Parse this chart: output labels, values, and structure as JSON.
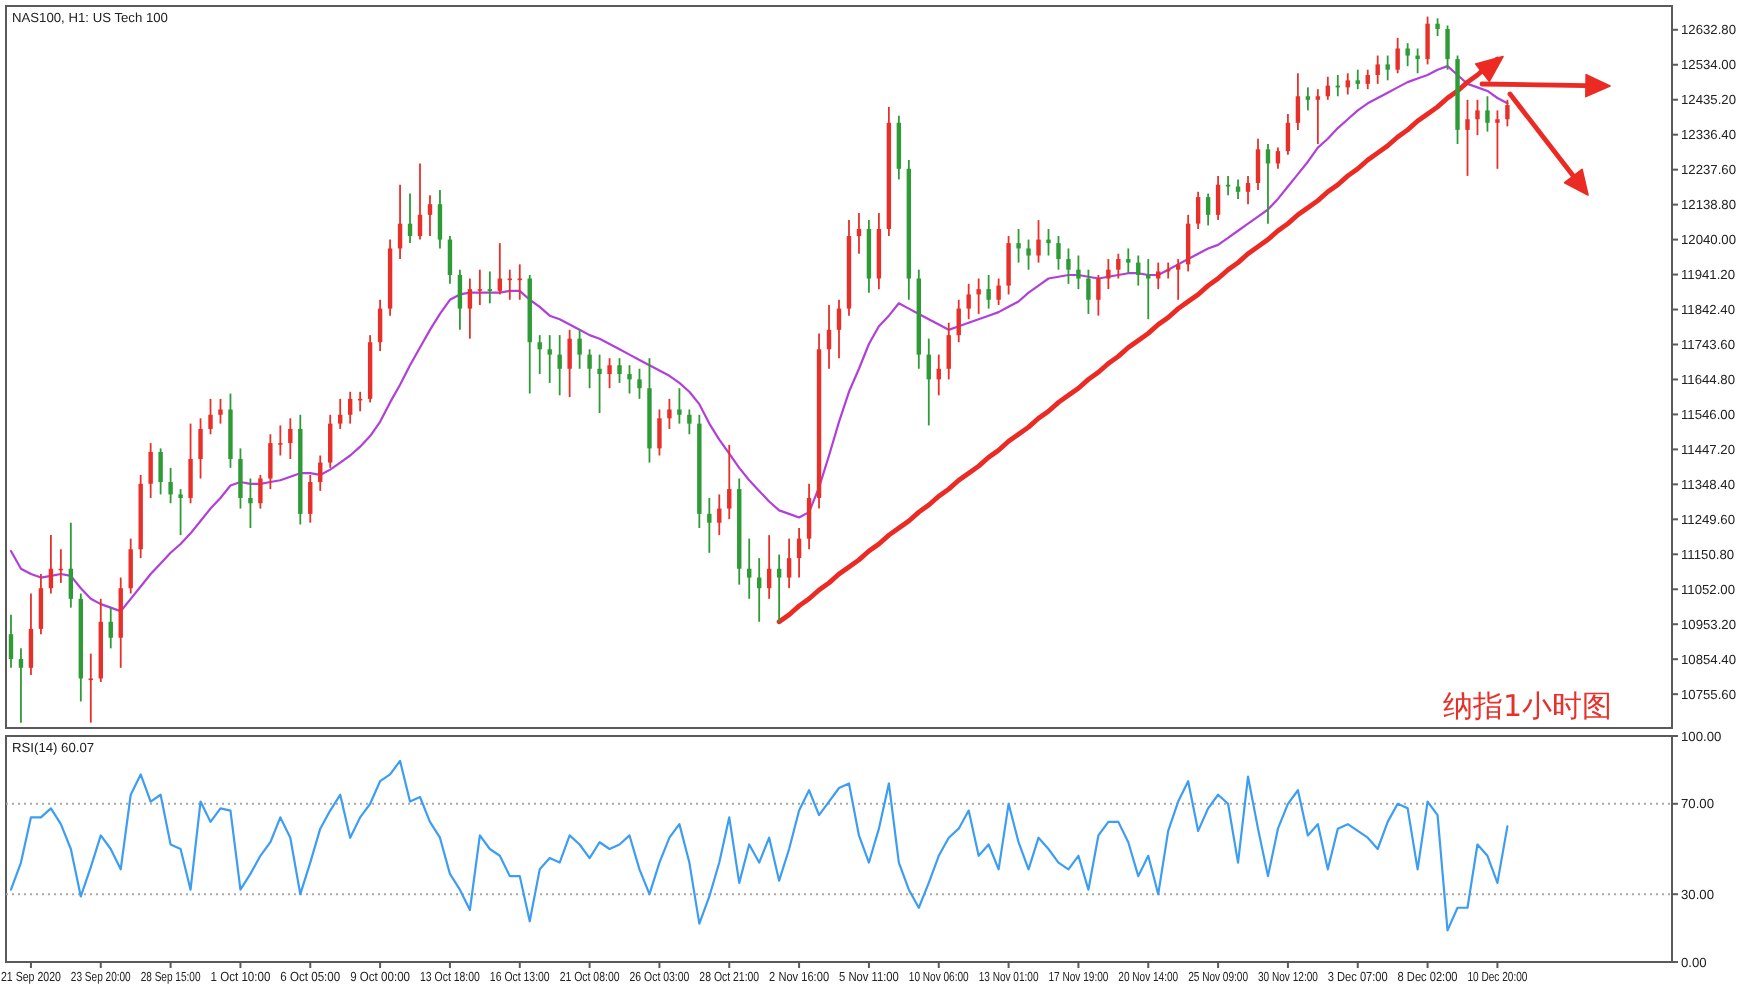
{
  "chart_data": [
    {
      "type": "candlestick",
      "title": "NAS100, H1: US Tech 100",
      "categories": [
        null,
        null,
        null,
        null,
        null,
        null,
        null,
        null,
        null,
        null,
        null,
        null,
        null,
        null,
        null,
        null,
        null,
        null,
        null,
        null,
        null,
        null,
        null,
        null,
        null,
        null,
        null,
        null,
        null,
        null,
        null,
        null,
        null,
        null,
        null,
        null,
        null,
        null,
        null,
        null,
        null,
        null,
        null,
        null,
        null,
        null,
        null,
        null,
        null,
        null,
        null,
        null,
        null,
        null,
        null,
        null,
        null,
        null,
        null,
        null,
        null,
        null,
        null,
        null,
        null,
        null,
        null,
        null,
        null,
        null,
        null,
        null,
        null,
        null,
        null,
        null,
        null,
        null,
        null,
        null,
        null,
        null,
        null,
        null,
        null,
        null,
        null,
        null,
        null,
        null,
        null,
        null,
        null,
        null,
        null,
        null,
        null,
        null,
        null,
        null,
        null,
        null,
        null,
        null,
        null,
        null,
        null,
        null,
        null,
        null,
        null,
        null,
        null,
        null,
        null,
        null,
        null,
        null,
        null,
        null,
        null,
        null,
        null,
        null,
        null,
        null,
        null,
        null,
        null,
        null,
        null,
        null,
        null,
        null,
        null,
        null,
        null,
        null,
        null,
        null,
        null,
        null,
        null,
        null,
        null,
        null,
        null,
        null,
        null,
        null,
        null,
        null,
        null,
        null,
        null,
        null,
        null,
        null,
        null,
        null,
        null,
        null,
        null,
        null,
        null,
        null,
        null
      ],
      "ohlc": [
        [
          10925,
          10980,
          10830,
          10855
        ],
        [
          10855,
          10885,
          10675,
          10830
        ],
        [
          10830,
          11040,
          10810,
          10940
        ],
        [
          10940,
          11095,
          10925,
          11055
        ],
        [
          11055,
          11205,
          11040,
          11110
        ],
        [
          11110,
          11165,
          11070,
          11110
        ],
        [
          11110,
          11240,
          11000,
          11025
        ],
        [
          11025,
          11040,
          10735,
          10800
        ],
        [
          10800,
          10870,
          10675,
          10800
        ],
        [
          10800,
          11025,
          10790,
          10960
        ],
        [
          10960,
          11000,
          10885,
          10915
        ],
        [
          10915,
          11085,
          10830,
          11055
        ],
        [
          11055,
          11195,
          11040,
          11165
        ],
        [
          11165,
          11375,
          11140,
          11350
        ],
        [
          11350,
          11465,
          11310,
          11440
        ],
        [
          11440,
          11450,
          11320,
          11355
        ],
        [
          11355,
          11395,
          11295,
          11320
        ],
        [
          11320,
          11335,
          11205,
          11310
        ],
        [
          11310,
          11520,
          11295,
          11420
        ],
        [
          11420,
          11535,
          11365,
          11505
        ],
        [
          11505,
          11590,
          11490,
          11545
        ],
        [
          11545,
          11590,
          11520,
          11560
        ],
        [
          11560,
          11605,
          11395,
          11420
        ],
        [
          11420,
          11450,
          11280,
          11310
        ],
        [
          11310,
          11365,
          11225,
          11295
        ],
        [
          11295,
          11375,
          11280,
          11365
        ],
        [
          11365,
          11490,
          11335,
          11465
        ],
        [
          11465,
          11515,
          11430,
          11465
        ],
        [
          11465,
          11535,
          11420,
          11505
        ],
        [
          11505,
          11545,
          11235,
          11265
        ],
        [
          11265,
          11375,
          11240,
          11355
        ],
        [
          11355,
          11430,
          11330,
          11410
        ],
        [
          11410,
          11545,
          11395,
          11520
        ],
        [
          11520,
          11590,
          11505,
          11545
        ],
        [
          11545,
          11610,
          11520,
          11590
        ],
        [
          11590,
          11610,
          11555,
          11590
        ],
        [
          11590,
          11770,
          11580,
          11750
        ],
        [
          11750,
          11870,
          11725,
          11845
        ],
        [
          11845,
          12040,
          11825,
          12015
        ],
        [
          12015,
          12195,
          11985,
          12085
        ],
        [
          12085,
          12170,
          12030,
          12050
        ],
        [
          12050,
          12255,
          12040,
          12110
        ],
        [
          12110,
          12165,
          12050,
          12140
        ],
        [
          12140,
          12180,
          12015,
          12040
        ],
        [
          12040,
          12050,
          11915,
          11940
        ],
        [
          11940,
          11955,
          11785,
          11845
        ],
        [
          11845,
          11930,
          11760,
          11900
        ],
        [
          11900,
          11955,
          11855,
          11900
        ],
        [
          11900,
          11950,
          11860,
          11895
        ],
        [
          11895,
          12030,
          11885,
          11930
        ],
        [
          11930,
          11955,
          11870,
          11930
        ],
        [
          11930,
          11970,
          11870,
          11930
        ],
        [
          11930,
          11940,
          11605,
          11750
        ],
        [
          11750,
          11770,
          11660,
          11730
        ],
        [
          11730,
          11770,
          11635,
          11715
        ],
        [
          11715,
          11770,
          11600,
          11675
        ],
        [
          11675,
          11785,
          11595,
          11760
        ],
        [
          11760,
          11785,
          11675,
          11715
        ],
        [
          11715,
          11730,
          11620,
          11675
        ],
        [
          11675,
          11715,
          11550,
          11660
        ],
        [
          11660,
          11705,
          11620,
          11685
        ],
        [
          11685,
          11705,
          11635,
          11660
        ],
        [
          11660,
          11685,
          11605,
          11645
        ],
        [
          11645,
          11675,
          11590,
          11620
        ],
        [
          11620,
          11705,
          11410,
          11450
        ],
        [
          11450,
          11560,
          11430,
          11535
        ],
        [
          11535,
          11590,
          11505,
          11560
        ],
        [
          11560,
          11620,
          11520,
          11545
        ],
        [
          11545,
          11560,
          11490,
          11520
        ],
        [
          11520,
          11545,
          11225,
          11265
        ],
        [
          11265,
          11310,
          11155,
          11240
        ],
        [
          11240,
          11320,
          11205,
          11280
        ],
        [
          11280,
          11460,
          11250,
          11335
        ],
        [
          11335,
          11365,
          11065,
          11110
        ],
        [
          11110,
          11195,
          11025,
          11085
        ],
        [
          11085,
          11140,
          10960,
          11055
        ],
        [
          11055,
          11205,
          11025,
          11110
        ],
        [
          11110,
          11150,
          10960,
          11085
        ],
        [
          11085,
          11195,
          11055,
          11140
        ],
        [
          11140,
          11225,
          11085,
          11195
        ],
        [
          11195,
          11350,
          11165,
          11310
        ],
        [
          11310,
          11775,
          11280,
          11730
        ],
        [
          11730,
          11855,
          11675,
          11785
        ],
        [
          11785,
          11870,
          11705,
          11845
        ],
        [
          11845,
          12095,
          11825,
          12050
        ],
        [
          12050,
          12115,
          12000,
          12070
        ],
        [
          12070,
          12095,
          11890,
          11930
        ],
        [
          11930,
          12115,
          11900,
          12070
        ],
        [
          12070,
          12415,
          12050,
          12370
        ],
        [
          12370,
          12390,
          12210,
          12240
        ],
        [
          12240,
          12265,
          11870,
          11930
        ],
        [
          11930,
          11955,
          11675,
          11715
        ],
        [
          11715,
          11760,
          11515,
          11645
        ],
        [
          11645,
          11715,
          11600,
          11675
        ],
        [
          11675,
          11805,
          11645,
          11770
        ],
        [
          11770,
          11870,
          11750,
          11845
        ],
        [
          11845,
          11915,
          11815,
          11885
        ],
        [
          11885,
          11930,
          11830,
          11900
        ],
        [
          11900,
          11940,
          11845,
          11870
        ],
        [
          11870,
          11930,
          11855,
          11910
        ],
        [
          11910,
          12050,
          11885,
          12030
        ],
        [
          12030,
          12070,
          11975,
          12015
        ],
        [
          12015,
          12040,
          11955,
          11995
        ],
        [
          11995,
          12095,
          11975,
          12040
        ],
        [
          12040,
          12070,
          11995,
          12030
        ],
        [
          12030,
          12050,
          11955,
          11985
        ],
        [
          11985,
          12015,
          11915,
          11955
        ],
        [
          11955,
          11995,
          11900,
          11930
        ],
        [
          11930,
          11955,
          11830,
          11870
        ],
        [
          11870,
          11940,
          11825,
          11930
        ],
        [
          11930,
          11985,
          11900,
          11955
        ],
        [
          11955,
          12000,
          11930,
          11985
        ],
        [
          11985,
          12015,
          11945,
          11975
        ],
        [
          11975,
          11995,
          11910,
          11940
        ],
        [
          11940,
          11985,
          11815,
          11930
        ],
        [
          11930,
          11975,
          11900,
          11950
        ],
        [
          11950,
          11975,
          11930,
          11955
        ],
        [
          11955,
          11985,
          11870,
          11970
        ],
        [
          11970,
          12110,
          11950,
          12085
        ],
        [
          12085,
          12175,
          12070,
          12160
        ],
        [
          12160,
          12170,
          12080,
          12110
        ],
        [
          12110,
          12220,
          12095,
          12195
        ],
        [
          12195,
          12220,
          12165,
          12190
        ],
        [
          12190,
          12210,
          12155,
          12175
        ],
        [
          12175,
          12220,
          12140,
          12200
        ],
        [
          12200,
          12325,
          12180,
          12295
        ],
        [
          12295,
          12310,
          12085,
          12255
        ],
        [
          12255,
          12300,
          12240,
          12290
        ],
        [
          12290,
          12395,
          12280,
          12370
        ],
        [
          12370,
          12510,
          12350,
          12445
        ],
        [
          12445,
          12470,
          12405,
          12435
        ],
        [
          12435,
          12465,
          12310,
          12445
        ],
        [
          12445,
          12500,
          12435,
          12475
        ],
        [
          12475,
          12505,
          12445,
          12470
        ],
        [
          12470,
          12510,
          12450,
          12490
        ],
        [
          12490,
          12520,
          12465,
          12480
        ],
        [
          12480,
          12520,
          12465,
          12505
        ],
        [
          12505,
          12560,
          12480,
          12535
        ],
        [
          12535,
          12560,
          12490,
          12520
        ],
        [
          12520,
          12610,
          12510,
          12580
        ],
        [
          12580,
          12595,
          12530,
          12560
        ],
        [
          12560,
          12580,
          12510,
          12550
        ],
        [
          12550,
          12670,
          12535,
          12650
        ],
        [
          12650,
          12665,
          12615,
          12635
        ],
        [
          12635,
          12645,
          12520,
          12550
        ],
        [
          12550,
          12560,
          12310,
          12350
        ],
        [
          12350,
          12435,
          12220,
          12380
        ],
        [
          12380,
          12435,
          12335,
          12405
        ],
        [
          12405,
          12445,
          12345,
          12370
        ],
        [
          12370,
          12405,
          12240,
          12380
        ],
        [
          12380,
          12435,
          12360,
          12420
        ],
        null,
        null,
        null,
        null,
        null,
        null,
        null,
        null,
        null,
        null,
        null,
        null,
        null,
        null,
        null,
        null
      ],
      "colors": [
        "#2e9b36",
        "#2e9b36",
        "#e8302a",
        "#e8302a",
        "#e8302a",
        "#e8302a",
        "#2e9b36",
        "#2e9b36",
        "#e8302a",
        "#e8302a",
        "#2e9b36",
        "#e8302a",
        "#e8302a",
        "#e8302a",
        "#e8302a",
        "#2e9b36",
        "#2e9b36",
        "#2e9b36",
        "#e8302a",
        "#e8302a",
        "#e8302a",
        "#e8302a",
        "#2e9b36",
        "#2e9b36",
        "#2e9b36",
        "#e8302a",
        "#e8302a",
        "#e8302a",
        "#e8302a",
        "#2e9b36",
        "#e8302a",
        "#e8302a",
        "#e8302a",
        "#e8302a",
        "#e8302a",
        "#e8302a",
        "#e8302a",
        "#e8302a",
        "#e8302a",
        "#e8302a",
        "#2e9b36",
        "#e8302a",
        "#e8302a",
        "#2e9b36",
        "#2e9b36",
        "#2e9b36",
        "#e8302a",
        "#e8302a",
        "#2e9b36",
        "#e8302a",
        "#e8302a",
        "#e8302a",
        "#2e9b36",
        "#2e9b36",
        "#2e9b36",
        "#2e9b36",
        "#e8302a",
        "#2e9b36",
        "#2e9b36",
        "#2e9b36",
        "#e8302a",
        "#2e9b36",
        "#2e9b36",
        "#2e9b36",
        "#2e9b36",
        "#e8302a",
        "#e8302a",
        "#2e9b36",
        "#2e9b36",
        "#2e9b36",
        "#2e9b36",
        "#e8302a",
        "#e8302a",
        "#2e9b36",
        "#2e9b36",
        "#2e9b36",
        "#e8302a",
        "#2e9b36",
        "#e8302a",
        "#e8302a",
        "#e8302a",
        "#e8302a",
        "#e8302a",
        "#e8302a",
        "#e8302a",
        "#e8302a",
        "#2e9b36",
        "#e8302a",
        "#e8302a",
        "#2e9b36",
        "#2e9b36",
        "#2e9b36",
        "#2e9b36",
        "#e8302a",
        "#e8302a",
        "#e8302a",
        "#e8302a",
        "#e8302a",
        "#2e9b36",
        "#e8302a",
        "#e8302a",
        "#2e9b36",
        "#2e9b36",
        "#e8302a",
        "#2e9b36",
        "#2e9b36",
        "#2e9b36",
        "#2e9b36",
        "#2e9b36",
        "#e8302a",
        "#e8302a",
        "#e8302a",
        "#2e9b36",
        "#2e9b36",
        "#2e9b36",
        "#e8302a",
        "#e8302a",
        "#e8302a",
        "#e8302a",
        "#e8302a",
        "#2e9b36",
        "#e8302a",
        "#2e9b36",
        "#2e9b36",
        "#e8302a",
        "#e8302a",
        "#2e9b36",
        "#e8302a",
        "#e8302a",
        "#e8302a",
        "#2e9b36",
        "#e8302a",
        "#e8302a",
        "#2e9b36",
        "#e8302a",
        "#2e9b36",
        "#e8302a",
        "#e8302a",
        "#2e9b36",
        "#e8302a",
        "#2e9b36",
        "#2e9b36",
        "#e8302a",
        "#2e9b36",
        "#2e9b36",
        "#2e9b36",
        "#e8302a",
        "#e8302a",
        "#2e9b36",
        "#e8302a",
        "#e8302a",
        null,
        null,
        null,
        null,
        null,
        null,
        null,
        null,
        null,
        null,
        null,
        null,
        null,
        null,
        null,
        null
      ],
      "series": [
        {
          "type": "line",
          "color": "#b040d8",
          "values": [
            11160,
            11110,
            11095,
            11085,
            11090,
            11095,
            11090,
            11055,
            11025,
            11010,
            11000,
            10990,
            11025,
            11060,
            11095,
            11125,
            11155,
            11180,
            11210,
            11245,
            11280,
            11310,
            11345,
            11355,
            11350,
            11350,
            11355,
            11360,
            11370,
            11380,
            11380,
            11375,
            11390,
            11410,
            11430,
            11455,
            11485,
            11525,
            11580,
            11630,
            11685,
            11735,
            11785,
            11830,
            11870,
            11885,
            11890,
            11890,
            11890,
            11890,
            11895,
            11895,
            11870,
            11850,
            11825,
            11815,
            11800,
            11785,
            11770,
            11760,
            11745,
            11730,
            11715,
            11700,
            11685,
            11670,
            11655,
            11635,
            11610,
            11575,
            11520,
            11475,
            11435,
            11395,
            11360,
            11330,
            11300,
            11275,
            11265,
            11255,
            11270,
            11340,
            11430,
            11525,
            11610,
            11675,
            11745,
            11795,
            11825,
            11860,
            11845,
            11830,
            11815,
            11800,
            11785,
            11795,
            11805,
            11815,
            11825,
            11835,
            11850,
            11865,
            11890,
            11910,
            11930,
            11935,
            11940,
            11940,
            11935,
            11930,
            11935,
            11940,
            11945,
            11945,
            11940,
            11940,
            11955,
            11970,
            11985,
            12000,
            12015,
            12025,
            12045,
            12065,
            12085,
            12105,
            12125,
            12155,
            12190,
            12225,
            12260,
            12300,
            12325,
            12355,
            12380,
            12405,
            12425,
            12440,
            12455,
            12470,
            12485,
            12495,
            12505,
            12520,
            12530,
            12505,
            12480,
            12470,
            12460,
            12440,
            12425,
            null,
            null,
            null,
            null,
            null,
            null,
            null,
            null,
            null,
            null,
            null,
            null,
            null,
            null,
            null,
            null
          ]
        },
        {
          "type": "line",
          "color": "#ec2a24",
          "values": [
            null,
            null,
            null,
            null,
            null,
            null,
            null,
            null,
            null,
            null,
            null,
            null,
            null,
            null,
            null,
            null,
            null,
            null,
            null,
            null,
            null,
            null,
            null,
            null,
            null,
            null,
            null,
            null,
            null,
            null,
            null,
            null,
            null,
            null,
            null,
            null,
            null,
            null,
            null,
            null,
            null,
            null,
            null,
            null,
            null,
            null,
            null,
            null,
            null,
            null,
            null,
            null,
            null,
            null,
            null,
            null,
            null,
            null,
            null,
            null,
            null,
            null,
            null,
            null,
            null,
            null,
            null,
            null,
            null,
            null,
            null,
            null,
            null,
            null,
            null,
            null,
            null,
            10960,
            10980,
            11005,
            11025,
            11050,
            11070,
            11095,
            11115,
            11135,
            11160,
            11180,
            11205,
            11225,
            11245,
            11270,
            11290,
            11315,
            11335,
            11360,
            11380,
            11400,
            11425,
            11445,
            11470,
            11490,
            11510,
            11535,
            11555,
            11580,
            11600,
            11620,
            11645,
            11665,
            11690,
            11710,
            11735,
            11755,
            11775,
            11800,
            11820,
            11845,
            11865,
            11885,
            11910,
            11930,
            11955,
            11975,
            12000,
            12020,
            12040,
            12065,
            12085,
            12110,
            12130,
            12150,
            12175,
            12195,
            12220,
            12240,
            12265,
            12285,
            12305,
            12330,
            12350,
            12375,
            12395,
            12415,
            12440,
            12460,
            12485,
            12505,
            12530,
            12550,
            null,
            null,
            null,
            null,
            null,
            null,
            null,
            null,
            null,
            null,
            null,
            null,
            null,
            null,
            null,
            null,
            null
          ]
        }
      ],
      "ylim": [
        10660,
        12700
      ],
      "yticks": [
        {
          "value": 12632.8,
          "label": "12632.80"
        },
        {
          "value": 12534,
          "label": "12534.00"
        },
        {
          "value": 12435.2,
          "label": "12435.20"
        },
        {
          "value": 12336.4,
          "label": "12336.40"
        },
        {
          "value": 12237.6,
          "label": "12237.60"
        },
        {
          "value": 12138.8,
          "label": "12138.80"
        },
        {
          "value": 12040,
          "label": "12040.00"
        },
        {
          "value": 11941.2,
          "label": "11941.20"
        },
        {
          "value": 11842.4,
          "label": "11842.40"
        },
        {
          "value": 11743.6,
          "label": "11743.60"
        },
        {
          "value": 11644.8,
          "label": "11644.80"
        },
        {
          "value": 11546,
          "label": "11546.00"
        },
        {
          "value": 11447.2,
          "label": "11447.20"
        },
        {
          "value": 11348.4,
          "label": "11348.40"
        },
        {
          "value": 11249.6,
          "label": "11249.60"
        },
        {
          "value": 11150.8,
          "label": "11150.80"
        },
        {
          "value": 11052,
          "label": "11052.00"
        },
        {
          "value": 10953.2,
          "label": "10953.20"
        },
        {
          "value": 10854.4,
          "label": "10854.40"
        },
        {
          "value": 10755.6,
          "label": "10755.60"
        }
      ],
      "tick_labels": "y",
      "annotations": [
        "纳指1小时图"
      ]
    },
    {
      "type": "line",
      "title": "RSI(14) 60.07",
      "categories": [
        null,
        null,
        "21 Sep 2020",
        null,
        null,
        null,
        null,
        null,
        null,
        "23 Sep 20:00",
        null,
        null,
        null,
        null,
        null,
        null,
        "28 Sep 15:00",
        null,
        null,
        null,
        null,
        null,
        null,
        "1 Oct 10:00",
        null,
        null,
        null,
        null,
        null,
        null,
        "6 Oct 05:00",
        null,
        null,
        null,
        null,
        null,
        null,
        "9 Oct 00:00",
        null,
        null,
        null,
        null,
        null,
        null,
        "13 Oct 18:00",
        null,
        null,
        null,
        null,
        null,
        null,
        "16 Oct 13:00",
        null,
        null,
        null,
        null,
        null,
        null,
        "21 Oct 08:00",
        null,
        null,
        null,
        null,
        null,
        null,
        "26 Oct 03:00",
        null,
        null,
        null,
        null,
        null,
        null,
        "28 Oct 21:00",
        null,
        null,
        null,
        null,
        null,
        null,
        "2 Nov 16:00",
        null,
        null,
        null,
        null,
        null,
        null,
        "5 Nov 11:00",
        null,
        null,
        null,
        null,
        null,
        null,
        "10 Nov 06:00",
        null,
        null,
        null,
        null,
        null,
        null,
        "13 Nov 01:00",
        null,
        null,
        null,
        null,
        null,
        null,
        "17 Nov 19:00",
        null,
        null,
        null,
        null,
        null,
        null,
        "20 Nov 14:00",
        null,
        null,
        null,
        null,
        null,
        null,
        "25 Nov 09:00",
        null,
        null,
        null,
        null,
        null,
        null,
        "30 Nov 12:00",
        null,
        null,
        null,
        null,
        null,
        null,
        "3 Dec 07:00",
        null,
        null,
        null,
        null,
        null,
        null,
        "8 Dec 02:00",
        null,
        null,
        null,
        null,
        null,
        null,
        "10 Dec 20:00",
        null,
        null,
        null,
        null,
        null,
        null,
        null,
        null,
        null,
        null,
        null,
        null,
        null,
        null,
        null,
        null,
        null
      ],
      "series": [
        {
          "color": "#3d9df2",
          "values": [
            32,
            44,
            64,
            64,
            68,
            61,
            50,
            29,
            42,
            56,
            50,
            41,
            74,
            83,
            71,
            74,
            52,
            50,
            32,
            71,
            62,
            68,
            67,
            32,
            39,
            47,
            53,
            64,
            55,
            30,
            44,
            59,
            67,
            74,
            55,
            64,
            70,
            80,
            83,
            89,
            71,
            73,
            62,
            55,
            39,
            32,
            23,
            56,
            50,
            47,
            38,
            38,
            18,
            41,
            46,
            44,
            56,
            52,
            46,
            53,
            50,
            52,
            56,
            41,
            30,
            44,
            55,
            61,
            44,
            17,
            29,
            44,
            64,
            35,
            52,
            44,
            55,
            36,
            50,
            67,
            76,
            65,
            71,
            77,
            79,
            56,
            44,
            59,
            79,
            44,
            32,
            24,
            35,
            47,
            55,
            59,
            67,
            47,
            52,
            41,
            70,
            53,
            41,
            55,
            50,
            44,
            41,
            47,
            32,
            56,
            62,
            62,
            53,
            38,
            47,
            30,
            58,
            71,
            80,
            58,
            68,
            74,
            70,
            44,
            82,
            59,
            38,
            59,
            70,
            76,
            56,
            61,
            41,
            59,
            61,
            58,
            55,
            50,
            62,
            70,
            68,
            41,
            71,
            65,
            14,
            24,
            24,
            52,
            47,
            35,
            60,
            null,
            null,
            null,
            null,
            null,
            null,
            null,
            null,
            null,
            null,
            null,
            null,
            null,
            null,
            null,
            null
          ]
        }
      ],
      "ylim": [
        0,
        100
      ],
      "yticks": [
        {
          "value": 100,
          "label": "100.00"
        },
        {
          "value": 70,
          "label": "70.00"
        },
        {
          "value": 30,
          "label": "30.00"
        },
        {
          "value": 0,
          "label": "0.00"
        }
      ],
      "ref_lines": [
        {
          "axis": "y",
          "value": 70,
          "color": "#a8a8a8",
          "line_style": "dotted"
        },
        {
          "axis": "y",
          "value": 30,
          "color": "#a8a8a8",
          "line_style": "dotted"
        }
      ]
    }
  ]
}
